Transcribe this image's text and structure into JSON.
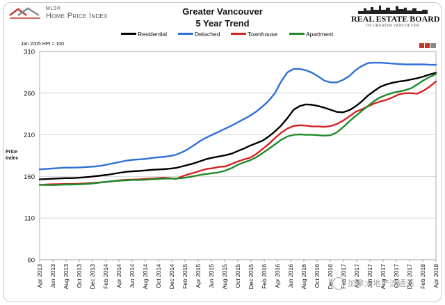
{
  "header": {
    "left_logo_small": "MLS®",
    "left_logo_name": "Home Price Index",
    "title": "Greater Vancouver",
    "subtitle": "5 Year Trend",
    "right_logo_name": "REAL ESTATE BOARD",
    "right_logo_sub": "OF GREATER VANCOUVER"
  },
  "watermark": {
    "text": "加拿大地产流通派"
  },
  "chart_data": {
    "type": "line",
    "title": "Greater Vancouver",
    "subtitle": "5 Year Trend",
    "note": "Jan 2005 HPI = 100",
    "ylabel": "Price Index",
    "xlabel": "",
    "ylim": [
      60,
      310
    ],
    "yticks": [
      60,
      110,
      160,
      210,
      260,
      310
    ],
    "grid": "horizontal",
    "legend_position": "top",
    "x_tick_labels": [
      "Apr 2013",
      "Jun 2013",
      "Aug 2013",
      "Oct 2013",
      "Dec 2013",
      "Feb 2014",
      "Apr 2014",
      "Jun 2014",
      "Aug 2014",
      "Oct 2014",
      "Dec 2014",
      "Feb 2015",
      "Apr 2015",
      "Jun 2015",
      "Aug 2015",
      "Oct 2015",
      "Dec 2015",
      "Feb 2016",
      "Apr 2016",
      "Jun 2016",
      "Aug 2016",
      "Oct 2016",
      "Dec 2016",
      "Feb 2017",
      "Apr 2017",
      "Jun 2017",
      "Aug 2017",
      "Oct 2017",
      "Dec 2017",
      "Feb 2018",
      "Apr 2018"
    ],
    "series": [
      {
        "name": "Residential",
        "color": "#000000",
        "values": [
          156.5,
          156.8,
          157.2,
          157.6,
          158.0,
          158.0,
          158.3,
          158.8,
          159.4,
          160.3,
          161.2,
          162.0,
          163.3,
          164.5,
          165.6,
          166.2,
          166.6,
          167.2,
          167.9,
          168.4,
          168.7,
          169.4,
          170.2,
          172.0,
          174.0,
          176.0,
          178.5,
          181.0,
          182.7,
          184.1,
          185.5,
          187.3,
          190.5,
          193.5,
          197.0,
          200.0,
          203.0,
          208.0,
          214.0,
          221.0,
          230.0,
          240.0,
          244.5,
          246.5,
          246.0,
          244.5,
          242.5,
          240.0,
          237.5,
          237.0,
          239.5,
          244.0,
          250.0,
          257.0,
          262.5,
          267.5,
          270.5,
          272.5,
          274.0,
          275.0,
          276.5,
          278.0,
          280.0,
          282.5,
          284.5
        ]
      },
      {
        "name": "Detached",
        "color": "#2f6fd6",
        "values": [
          168.5,
          169.0,
          169.5,
          170.0,
          170.5,
          170.5,
          170.7,
          171.0,
          171.5,
          172.0,
          173.0,
          174.5,
          176.0,
          177.5,
          179.0,
          180.0,
          180.5,
          181.0,
          182.0,
          183.0,
          183.5,
          184.5,
          186.0,
          189.0,
          193.0,
          198.0,
          203.0,
          207.0,
          210.5,
          214.0,
          217.5,
          221.0,
          225.0,
          229.0,
          233.0,
          238.0,
          244.0,
          251.0,
          260.0,
          274.0,
          285.0,
          289.0,
          289.0,
          287.5,
          284.5,
          280.0,
          275.0,
          273.0,
          273.0,
          276.0,
          280.5,
          287.5,
          292.5,
          296.0,
          296.5,
          296.5,
          296.0,
          295.5,
          295.0,
          294.5,
          294.5,
          294.5,
          294.5,
          294.0,
          294.0
        ]
      },
      {
        "name": "Townhouse",
        "color": "#d62121",
        "values": [
          150.0,
          150.3,
          150.6,
          150.8,
          151.0,
          151.0,
          151.2,
          151.5,
          152.0,
          152.5,
          153.0,
          153.5,
          154.5,
          155.5,
          156.0,
          156.3,
          156.5,
          157.0,
          157.5,
          158.0,
          158.5,
          158.0,
          157.0,
          160.0,
          162.5,
          164.5,
          167.0,
          169.0,
          170.0,
          171.5,
          172.0,
          175.0,
          178.0,
          180.5,
          182.5,
          187.0,
          193.0,
          199.0,
          206.0,
          212.5,
          217.5,
          220.5,
          221.5,
          221.0,
          220.0,
          220.0,
          219.5,
          220.5,
          223.0,
          227.0,
          232.0,
          237.5,
          240.5,
          244.0,
          247.5,
          250.0,
          252.0,
          255.0,
          258.5,
          260.0,
          260.0,
          259.5,
          263.0,
          268.0,
          274.0
        ]
      },
      {
        "name": "Apartment",
        "color": "#1f8a2a",
        "values": [
          150.0,
          149.8,
          149.7,
          150.0,
          150.3,
          150.3,
          150.5,
          150.8,
          151.2,
          152.0,
          153.0,
          153.8,
          154.5,
          155.0,
          155.3,
          155.8,
          155.8,
          156.0,
          156.5,
          157.0,
          157.3,
          157.5,
          157.5,
          158.0,
          159.0,
          160.5,
          162.0,
          163.0,
          164.0,
          165.0,
          167.0,
          170.0,
          174.0,
          177.0,
          179.5,
          183.0,
          188.0,
          193.0,
          198.5,
          204.0,
          208.0,
          210.0,
          210.5,
          210.0,
          210.0,
          209.5,
          209.0,
          209.5,
          213.0,
          219.0,
          226.0,
          232.5,
          238.5,
          244.5,
          250.5,
          255.0,
          258.0,
          260.5,
          262.0,
          263.5,
          266.0,
          270.5,
          275.5,
          279.5,
          283.0
        ]
      }
    ]
  }
}
